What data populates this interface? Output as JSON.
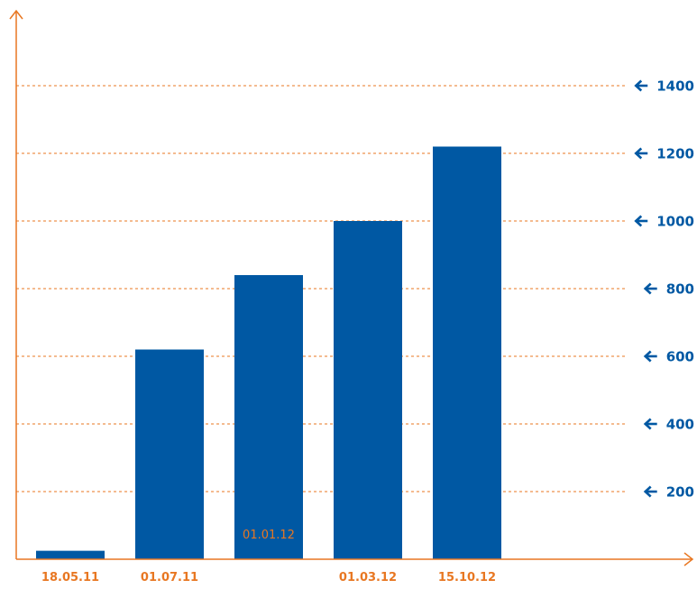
{
  "chart_data": {
    "type": "bar",
    "categories": [
      "18.05.11",
      "01.07.11",
      "",
      "01.03.12",
      "15.10.12"
    ],
    "values": [
      25,
      620,
      840,
      1000,
      1220
    ],
    "ylim": [
      0,
      1550
    ],
    "yticks": [
      200,
      400,
      600,
      800,
      1000,
      1200,
      1400
    ],
    "grid": true,
    "annotations": [
      {
        "text": "01.01.12",
        "category_index": 2,
        "y": 75
      }
    ],
    "title": "",
    "xlabel": "",
    "ylabel": ""
  },
  "colors": {
    "bar": "#0058a3",
    "axis": "#e87722",
    "grid": "#e87722",
    "tick_label": "#0058a3",
    "category_label": "#e87722",
    "annotation": "#e87722"
  },
  "icons": {
    "tick_marker": "arrow-left-icon"
  }
}
